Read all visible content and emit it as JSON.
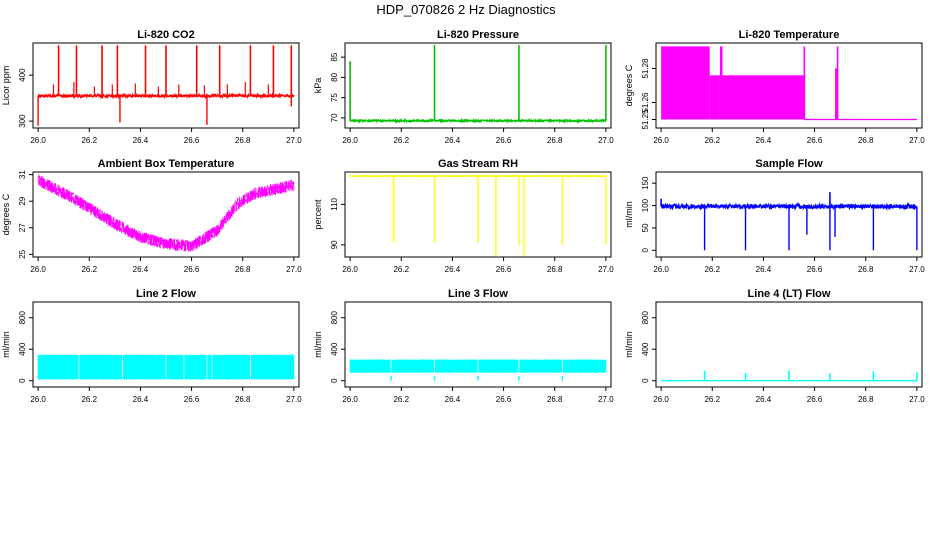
{
  "page_title": "HDP_070826  2 Hz Diagnostics",
  "chart_data": [
    {
      "type": "line",
      "title": "Li-820 CO2",
      "xlabel": "",
      "ylabel": "Licor ppm",
      "color": "#ff0000",
      "x_ticks": [
        "26.0",
        "26.2",
        "26.4",
        "26.6",
        "26.8",
        "27.0"
      ],
      "y_ticks": [
        "300",
        "400"
      ],
      "x_range": [
        25.98,
        27.02
      ],
      "y_range": [
        285,
        470
      ],
      "baseline": 355,
      "noise": 3,
      "spikes_up": [
        [
          26.08,
          465
        ],
        [
          26.15,
          465
        ],
        [
          26.25,
          465
        ],
        [
          26.31,
          465
        ],
        [
          26.42,
          465
        ],
        [
          26.5,
          465
        ],
        [
          26.62,
          465
        ],
        [
          26.71,
          465
        ],
        [
          26.83,
          465
        ],
        [
          26.92,
          465
        ],
        [
          26.99,
          465
        ]
      ],
      "spikes_down": [
        [
          26.0,
          290
        ],
        [
          26.32,
          297
        ],
        [
          26.66,
          292
        ],
        [
          26.99,
          332
        ]
      ],
      "features": [
        [
          26.06,
          380
        ],
        [
          26.14,
          385
        ],
        [
          26.22,
          375
        ],
        [
          26.29,
          380
        ],
        [
          26.38,
          382
        ],
        [
          26.47,
          375
        ],
        [
          26.55,
          380
        ],
        [
          26.65,
          378
        ],
        [
          26.74,
          380
        ],
        [
          26.81,
          385
        ],
        [
          26.9,
          380
        ]
      ]
    },
    {
      "type": "line",
      "title": "Li-820 Pressure",
      "xlabel": "",
      "ylabel": "kPa",
      "color": "#00c000",
      "x_ticks": [
        "26.0",
        "26.2",
        "26.4",
        "26.6",
        "26.8",
        "27.0"
      ],
      "y_ticks": [
        "70",
        "75",
        "80",
        "85"
      ],
      "x_range": [
        25.98,
        27.02
      ],
      "y_range": [
        67.5,
        88.5
      ],
      "baseline": 69.3,
      "noise": 0.2,
      "spikes_up": [
        [
          26.0,
          84
        ],
        [
          26.33,
          88
        ],
        [
          26.66,
          88
        ],
        [
          27.0,
          88
        ]
      ],
      "spikes_down": [],
      "features": []
    },
    {
      "type": "area",
      "title": "Li-820 Temperature",
      "xlabel": "",
      "ylabel": "degrees C",
      "color": "#ff00ff",
      "x_ticks": [
        "26.0",
        "26.2",
        "26.4",
        "26.6",
        "26.8",
        "27.0"
      ],
      "y_ticks": [
        "51.25",
        "51.26",
        "51.28"
      ],
      "x_range": [
        25.98,
        27.02
      ],
      "y_range": [
        51.245,
        51.295
      ],
      "bands": [
        [
          26.0,
          26.19,
          51.25,
          51.293
        ],
        [
          26.19,
          26.23,
          51.25,
          51.276
        ],
        [
          26.23,
          26.24,
          51.25,
          51.293
        ],
        [
          26.24,
          26.56,
          51.25,
          51.276
        ],
        [
          26.68,
          26.69,
          51.25,
          51.28
        ]
      ],
      "floor_line": [
        26.56,
        27.0,
        51.25
      ],
      "spikes_up": [
        [
          26.56,
          51.293
        ],
        [
          26.69,
          51.293
        ]
      ],
      "spikes_down": [],
      "features": []
    },
    {
      "type": "line",
      "title": "Ambient Box Temperature",
      "xlabel": "",
      "ylabel": "degrees C",
      "color": "#ff00ff",
      "x_ticks": [
        "26.0",
        "26.2",
        "26.4",
        "26.6",
        "26.8",
        "27.0"
      ],
      "y_ticks": [
        "25",
        "27",
        "29",
        "31"
      ],
      "x_range": [
        25.98,
        27.02
      ],
      "y_range": [
        24.8,
        31.2
      ],
      "trend": [
        [
          26.0,
          30.6
        ],
        [
          26.1,
          29.6
        ],
        [
          26.2,
          28.5
        ],
        [
          26.3,
          27.3
        ],
        [
          26.4,
          26.3
        ],
        [
          26.5,
          25.8
        ],
        [
          26.6,
          25.6
        ],
        [
          26.7,
          26.8
        ],
        [
          26.78,
          28.8
        ],
        [
          26.85,
          29.6
        ],
        [
          26.95,
          30.0
        ],
        [
          27.0,
          30.2
        ]
      ],
      "band": 0.9,
      "spikes_up": [],
      "spikes_down": [],
      "features": []
    },
    {
      "type": "line",
      "title": "Gas Stream RH",
      "xlabel": "",
      "ylabel": "percent",
      "color": "#ffff00",
      "x_ticks": [
        "26.0",
        "26.2",
        "26.4",
        "26.6",
        "26.8",
        "27.0"
      ],
      "y_ticks": [
        "90",
        "110"
      ],
      "x_range": [
        25.98,
        27.02
      ],
      "y_range": [
        84,
        126
      ],
      "baseline": 124,
      "noise": 0.2,
      "spikes_up": [],
      "spikes_down": [
        [
          26.17,
          91
        ],
        [
          26.33,
          91
        ],
        [
          26.5,
          91
        ],
        [
          26.57,
          84
        ],
        [
          26.66,
          90
        ],
        [
          26.68,
          84
        ],
        [
          26.83,
          90
        ],
        [
          27.0,
          90
        ]
      ],
      "features": []
    },
    {
      "type": "line",
      "title": "Sample Flow",
      "xlabel": "",
      "ylabel": "ml/min",
      "color": "#0000ff",
      "x_ticks": [
        "26.0",
        "26.2",
        "26.4",
        "26.6",
        "26.8",
        "27.0"
      ],
      "y_ticks": [
        "0",
        "50",
        "100",
        "150"
      ],
      "x_range": [
        25.98,
        27.02
      ],
      "y_range": [
        -15,
        175
      ],
      "baseline": 98,
      "noise": 5,
      "spikes_up": [
        [
          26.0,
          115
        ],
        [
          26.66,
          130
        ]
      ],
      "spikes_down": [
        [
          26.17,
          0
        ],
        [
          26.33,
          0
        ],
        [
          26.5,
          0
        ],
        [
          26.57,
          35
        ],
        [
          26.66,
          0
        ],
        [
          26.68,
          30
        ],
        [
          26.83,
          0
        ],
        [
          27.0,
          0
        ]
      ],
      "features": []
    },
    {
      "type": "line",
      "title": "Line 2 Flow",
      "xlabel": "",
      "ylabel": "ml/min",
      "color": "#00ffff",
      "x_ticks": [
        "26.0",
        "26.2",
        "26.4",
        "26.6",
        "26.8",
        "27.0"
      ],
      "y_ticks": [
        "0",
        "400",
        "800"
      ],
      "x_range": [
        25.98,
        27.02
      ],
      "y_range": [
        -80,
        1000
      ],
      "band_low": 15,
      "band_high": 330,
      "gaps": [
        26.16,
        26.33,
        26.5,
        26.57,
        26.66,
        26.68,
        26.83
      ],
      "spikes_up": [],
      "spikes_down": [],
      "features": []
    },
    {
      "type": "line",
      "title": "Line 3 Flow",
      "xlabel": "",
      "ylabel": "ml/min",
      "color": "#00ffff",
      "x_ticks": [
        "26.0",
        "26.2",
        "26.4",
        "26.6",
        "26.8",
        "27.0"
      ],
      "y_ticks": [
        "0",
        "400",
        "800"
      ],
      "x_range": [
        25.98,
        27.02
      ],
      "y_range": [
        -80,
        1000
      ],
      "band_low": 100,
      "band_high": 270,
      "gaps": [
        26.16,
        26.33,
        26.5,
        26.66,
        26.83
      ],
      "spikes_up": [],
      "spikes_down": [
        [
          26.16,
          60
        ],
        [
          26.33,
          60
        ],
        [
          26.5,
          60
        ],
        [
          26.66,
          60
        ],
        [
          26.83,
          60
        ]
      ],
      "features": []
    },
    {
      "type": "line",
      "title": "Line 4 (LT) Flow",
      "xlabel": "",
      "ylabel": "ml/min",
      "color": "#00ffff",
      "x_ticks": [
        "26.0",
        "26.2",
        "26.4",
        "26.6",
        "26.8",
        "27.0"
      ],
      "y_ticks": [
        "0",
        "400",
        "800"
      ],
      "x_range": [
        25.98,
        27.02
      ],
      "y_range": [
        -80,
        1000
      ],
      "baseline": 0,
      "noise": 2,
      "spikes_up": [
        [
          26.17,
          130
        ],
        [
          26.33,
          95
        ],
        [
          26.5,
          130
        ],
        [
          26.66,
          95
        ],
        [
          26.83,
          120
        ],
        [
          27.0,
          110
        ]
      ],
      "spikes_down": [],
      "features": []
    }
  ]
}
